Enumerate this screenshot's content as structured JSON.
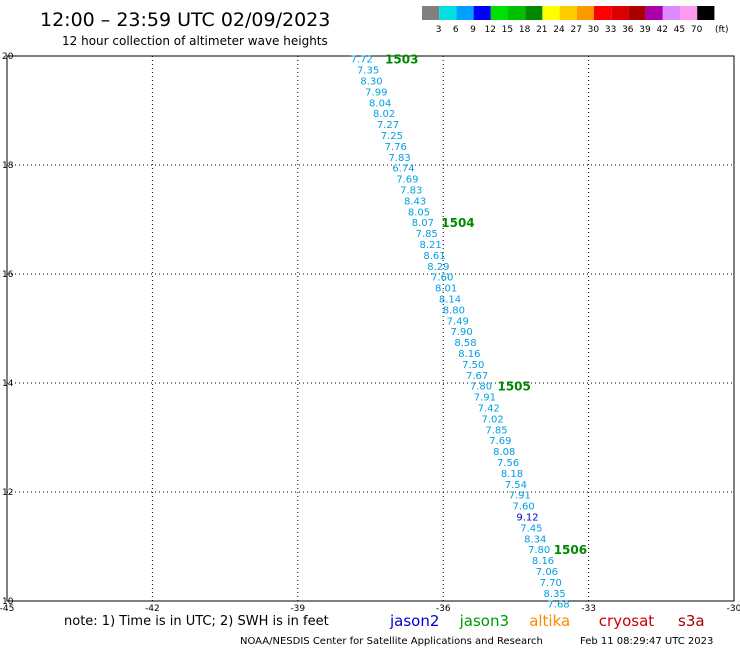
{
  "header": {
    "title": "12:00 – 23:59 UTC 02/09/2023",
    "subtitle": "12 hour collection of altimeter wave heights"
  },
  "legend": {
    "unit": "(ft)",
    "bins": [
      {
        "label": "3",
        "color": "#808080"
      },
      {
        "label": "6",
        "color": "#00e0e0"
      },
      {
        "label": "9",
        "color": "#00a0ff"
      },
      {
        "label": "12",
        "color": "#0000ff"
      },
      {
        "label": "15",
        "color": "#00e000"
      },
      {
        "label": "18",
        "color": "#00c000"
      },
      {
        "label": "21",
        "color": "#008800"
      },
      {
        "label": "24",
        "color": "#ffff00"
      },
      {
        "label": "27",
        "color": "#ffcc00"
      },
      {
        "label": "30",
        "color": "#ff9900"
      },
      {
        "label": "33",
        "color": "#ff0000"
      },
      {
        "label": "36",
        "color": "#dd0000"
      },
      {
        "label": "39",
        "color": "#aa0000"
      },
      {
        "label": "42",
        "color": "#aa00aa"
      },
      {
        "label": "45",
        "color": "#dd88ff"
      },
      {
        "label": "70",
        "color": "#ff99ee"
      },
      {
        "label": "",
        "color": "#000000"
      }
    ]
  },
  "footer": {
    "note": "note: 1) Time is in UTC; 2) SWH is in feet",
    "credit": "NOAA/NESDIS Center for Satellite Applications and Research",
    "timestamp": "Feb 11 08:29:47 UTC 2023",
    "satellites": [
      {
        "name": "jason2",
        "color": "#0000cc"
      },
      {
        "name": "jason3",
        "color": "#009900"
      },
      {
        "name": "altika",
        "color": "#ff8800"
      },
      {
        "name": "cryosat",
        "color": "#cc0000"
      },
      {
        "name": "s3a",
        "color": "#aa0000"
      }
    ]
  },
  "chart_data": {
    "type": "scatter",
    "xlim": [
      -45,
      -30
    ],
    "ylim": [
      10,
      20
    ],
    "x_ticks": [
      "-45",
      "-42",
      "-39",
      "-36",
      "-33",
      "-30"
    ],
    "y_ticks": [
      "10",
      "12",
      "14",
      "16",
      "18",
      "20"
    ],
    "grid": true,
    "track_colors": {
      "swh_6_9": "#00a0e0",
      "swh_9_12": "#0000cc",
      "pass_label": "#008800"
    },
    "points": [
      {
        "lon": -37.68,
        "lat": 19.95,
        "v": "7.72"
      },
      {
        "lon": -37.55,
        "lat": 19.75,
        "v": "7.35"
      },
      {
        "lon": -37.48,
        "lat": 19.55,
        "v": "8.30"
      },
      {
        "lon": -37.38,
        "lat": 19.35,
        "v": "7.99"
      },
      {
        "lon": -37.3,
        "lat": 19.15,
        "v": "8.04"
      },
      {
        "lon": -37.22,
        "lat": 18.95,
        "v": "8.02"
      },
      {
        "lon": -37.14,
        "lat": 18.75,
        "v": "7.27"
      },
      {
        "lon": -37.06,
        "lat": 18.55,
        "v": "7.25"
      },
      {
        "lon": -36.98,
        "lat": 18.35,
        "v": "7.76"
      },
      {
        "lon": -36.9,
        "lat": 18.15,
        "v": "7.83"
      },
      {
        "lon": -36.82,
        "lat": 17.95,
        "v": "6.74"
      },
      {
        "lon": -36.74,
        "lat": 17.75,
        "v": "7.69"
      },
      {
        "lon": -36.66,
        "lat": 17.55,
        "v": "7.83"
      },
      {
        "lon": -36.58,
        "lat": 17.35,
        "v": "8.43"
      },
      {
        "lon": -36.5,
        "lat": 17.15,
        "v": "8.05"
      },
      {
        "lon": -36.42,
        "lat": 16.95,
        "v": "8.07"
      },
      {
        "lon": -36.34,
        "lat": 16.75,
        "v": "7.85"
      },
      {
        "lon": -36.26,
        "lat": 16.55,
        "v": "8.21"
      },
      {
        "lon": -36.18,
        "lat": 16.35,
        "v": "8.61"
      },
      {
        "lon": -36.1,
        "lat": 16.15,
        "v": "8.29"
      },
      {
        "lon": -36.02,
        "lat": 15.95,
        "v": "7.60"
      },
      {
        "lon": -35.94,
        "lat": 15.75,
        "v": "8.01"
      },
      {
        "lon": -35.86,
        "lat": 15.55,
        "v": "8.14"
      },
      {
        "lon": -35.78,
        "lat": 15.35,
        "v": "8.80"
      },
      {
        "lon": -35.7,
        "lat": 15.15,
        "v": "7.49"
      },
      {
        "lon": -35.62,
        "lat": 14.95,
        "v": "7.90"
      },
      {
        "lon": -35.54,
        "lat": 14.75,
        "v": "8.58"
      },
      {
        "lon": -35.46,
        "lat": 14.55,
        "v": "8.16"
      },
      {
        "lon": -35.38,
        "lat": 14.35,
        "v": "7.50"
      },
      {
        "lon": -35.3,
        "lat": 14.15,
        "v": "7.67"
      },
      {
        "lon": -35.22,
        "lat": 13.95,
        "v": "7.80"
      },
      {
        "lon": -35.14,
        "lat": 13.75,
        "v": "7.91"
      },
      {
        "lon": -35.06,
        "lat": 13.55,
        "v": "7.42"
      },
      {
        "lon": -34.98,
        "lat": 13.35,
        "v": "7.02"
      },
      {
        "lon": -34.9,
        "lat": 13.15,
        "v": "7.85"
      },
      {
        "lon": -34.82,
        "lat": 12.95,
        "v": "7.69"
      },
      {
        "lon": -34.74,
        "lat": 12.75,
        "v": "8.08"
      },
      {
        "lon": -34.66,
        "lat": 12.55,
        "v": "7.56"
      },
      {
        "lon": -34.58,
        "lat": 12.35,
        "v": "8.18"
      },
      {
        "lon": -34.5,
        "lat": 12.15,
        "v": "7.54"
      },
      {
        "lon": -34.42,
        "lat": 11.95,
        "v": "7.91"
      },
      {
        "lon": -34.34,
        "lat": 11.75,
        "v": "7.60"
      },
      {
        "lon": -34.26,
        "lat": 11.55,
        "v": "9.12",
        "hi": true
      },
      {
        "lon": -34.18,
        "lat": 11.35,
        "v": "7.45"
      },
      {
        "lon": -34.1,
        "lat": 11.15,
        "v": "8.34"
      },
      {
        "lon": -34.02,
        "lat": 10.95,
        "v": "7.80"
      },
      {
        "lon": -33.94,
        "lat": 10.75,
        "v": "8.16"
      },
      {
        "lon": -33.86,
        "lat": 10.55,
        "v": "7.06"
      },
      {
        "lon": -33.78,
        "lat": 10.35,
        "v": "7.70"
      },
      {
        "lon": -33.7,
        "lat": 10.15,
        "v": "8.35"
      },
      {
        "lon": -33.62,
        "lat": 9.95,
        "v": "7.68"
      }
    ],
    "pass_labels": [
      {
        "lon": -37.2,
        "lat": 19.95,
        "text": "1503"
      },
      {
        "lon": -36.04,
        "lat": 16.95,
        "text": "1504"
      },
      {
        "lon": -34.88,
        "lat": 13.95,
        "text": "1505"
      },
      {
        "lon": -33.72,
        "lat": 10.95,
        "text": "1506"
      }
    ]
  }
}
